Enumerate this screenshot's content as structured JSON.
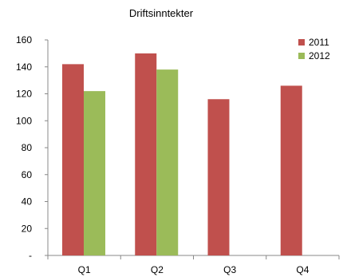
{
  "chart_data": {
    "type": "bar",
    "title": "Driftsinntekter",
    "categories": [
      "Q1",
      "Q2",
      "Q3",
      "Q4"
    ],
    "series": [
      {
        "name": "2011",
        "values": [
          142,
          150,
          116,
          126
        ],
        "color": "#c0504d"
      },
      {
        "name": "2012",
        "values": [
          122,
          138,
          null,
          null
        ],
        "color": "#9bbb59"
      }
    ],
    "ylim": [
      0,
      160
    ],
    "yticks": [
      0,
      20,
      40,
      60,
      80,
      100,
      120,
      140,
      160
    ],
    "ytick_labels": [
      "-",
      "20",
      "40",
      "60",
      "80",
      "100",
      "120",
      "140",
      "160"
    ],
    "grid": false,
    "legend_position": "top-right"
  }
}
